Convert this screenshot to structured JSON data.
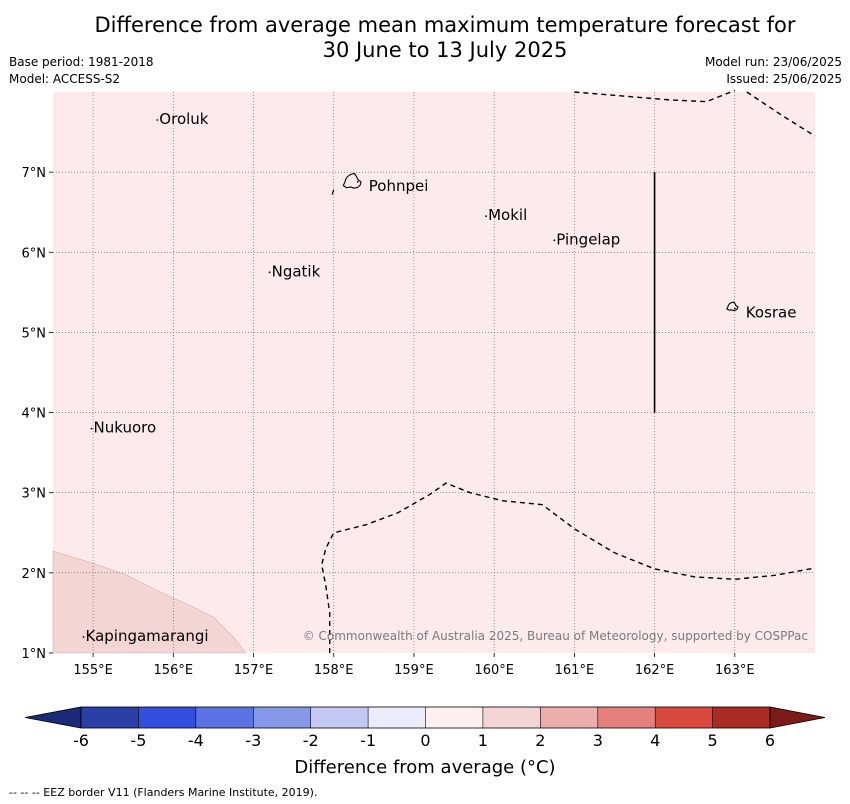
{
  "title_line1": "Difference from average mean maximum temperature forecast for",
  "title_line2": "30 June to 13 July 2025",
  "base_period": "Base period: 1981-2018",
  "model": "Model: ACCESS-S2",
  "model_run": "Model run: 23/06/2025",
  "issued": "Issued: 25/06/2025",
  "map": {
    "lon_range": [
      154.5,
      164.0
    ],
    "lat_range": [
      1.0,
      8.0
    ],
    "lon_ticks": [
      "155°E",
      "156°E",
      "157°E",
      "158°E",
      "159°E",
      "160°E",
      "161°E",
      "162°E",
      "163°E"
    ],
    "lat_ticks": [
      "1°N",
      "2°N",
      "3°N",
      "4°N",
      "5°N",
      "6°N",
      "7°N"
    ],
    "background_anomaly_class": "0 to 1",
    "background_color": "#fcebea",
    "places": [
      {
        "name": "Oroluk",
        "lon": 155.8,
        "lat": 7.65
      },
      {
        "name": "Pohnpei",
        "lon": 158.3,
        "lat": 6.88
      },
      {
        "name": "Mokil",
        "lon": 159.9,
        "lat": 6.45
      },
      {
        "name": "Pingelap",
        "lon": 160.75,
        "lat": 6.15
      },
      {
        "name": "Ngatik",
        "lon": 157.2,
        "lat": 5.75
      },
      {
        "name": "Kosrae",
        "lon": 163.0,
        "lat": 5.3
      },
      {
        "name": "Nukuoro",
        "lon": 154.98,
        "lat": 3.8
      },
      {
        "name": "Kapingamarangi",
        "lon": 154.88,
        "lat": 1.2
      }
    ],
    "copyright": "© Commonwealth of Australia 2025, Bureau of Meteorology, supported by COSPPac"
  },
  "colorbar": {
    "ticks": [
      "-6",
      "-5",
      "-4",
      "-3",
      "-2",
      "-1",
      "0",
      "1",
      "2",
      "3",
      "4",
      "5",
      "6"
    ],
    "colors": [
      "#2a3fa8",
      "#3350dc",
      "#5a72e2",
      "#8797e8",
      "#c1c8f2",
      "#ebedfb",
      "#fdf0ef",
      "#f3d5d3",
      "#edaeab",
      "#e5807a",
      "#d84a3e",
      "#a82b24"
    ],
    "under_color": "#1b2a78",
    "over_color": "#7b1c18",
    "label": "Difference from average (°C)"
  },
  "footnote": "--  --  -- EEZ border V11 (Flanders Marine Institute, 2019)."
}
